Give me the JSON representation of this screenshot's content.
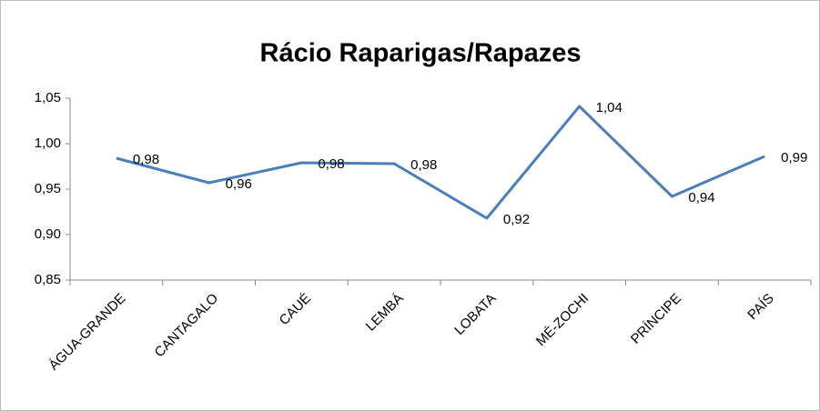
{
  "chart_data": {
    "type": "line",
    "title": "Rácio Raparigas/Rapazes",
    "categories": [
      "ÁGUA-GRANDE",
      "CANTAGALO",
      "CAUÉ",
      "LEMBÁ",
      "LOBATA",
      "MÉ-ZOCHI",
      "PRÍNCIPE",
      "PAÍS"
    ],
    "series": [
      {
        "color": "#4a7ebb",
        "values": [
          0.984,
          0.957,
          0.979,
          0.978,
          0.918,
          1.041,
          0.942,
          0.986
        ],
        "value_labels": [
          "0,98",
          "0,96",
          "0,98",
          "0,98",
          "0,92",
          "1,04",
          "0,94",
          "0,99"
        ]
      }
    ],
    "ylim": [
      0.85,
      1.05
    ],
    "yticks": [
      {
        "value": 0.85,
        "label": "0,85"
      },
      {
        "value": 0.9,
        "label": "0,90"
      },
      {
        "value": 0.95,
        "label": "0,95"
      },
      {
        "value": 1.0,
        "label": "1,00"
      },
      {
        "value": 1.05,
        "label": "1,05"
      }
    ],
    "grid": false
  }
}
